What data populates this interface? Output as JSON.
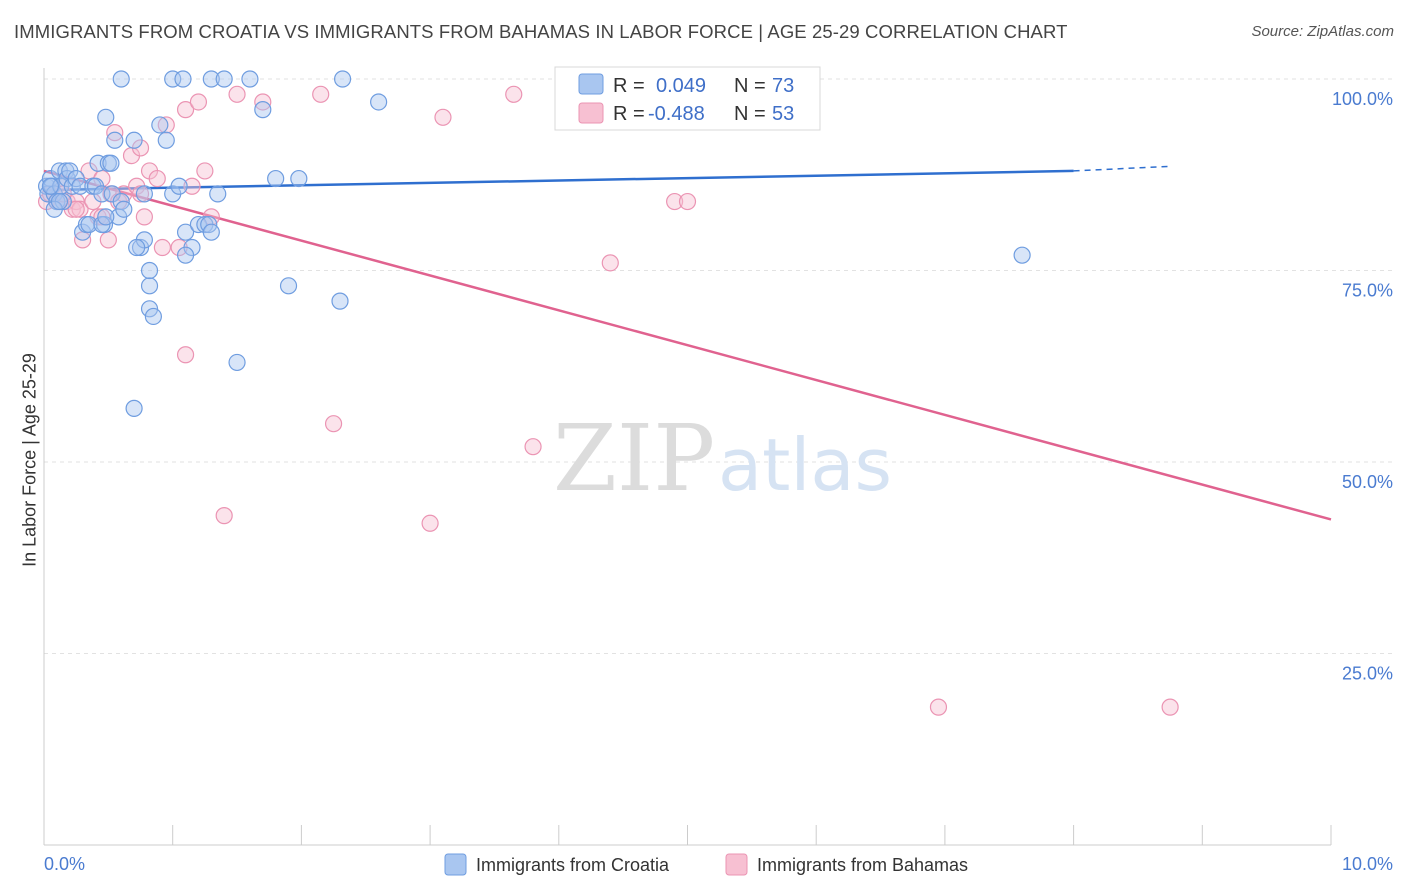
{
  "title": "IMMIGRANTS FROM CROATIA VS IMMIGRANTS FROM BAHAMAS IN LABOR FORCE | AGE 25-29 CORRELATION CHART",
  "source": "Source: ZipAtlas.com",
  "watermark": {
    "left": "ZIP",
    "right": "atlas"
  },
  "colors": {
    "croatia_fill": "#a9c6f0",
    "croatia_stroke": "#6f9de0",
    "croatia_line": "#2f6fcf",
    "bahamas_fill": "#f7c0d2",
    "bahamas_stroke": "#eb94b3",
    "bahamas_line": "#e0628f",
    "tick_text": "#4a7bd0",
    "grid": "#e2e2e2"
  },
  "legend": {
    "croatia": {
      "r_label": "R =",
      "r_value": "0.049",
      "n_label": "N =",
      "n_value": "73"
    },
    "bahamas": {
      "r_label": "R =",
      "r_value": "-0.488",
      "n_label": "N =",
      "n_value": "53"
    }
  },
  "chart_data": {
    "type": "scatter",
    "title": "IMMIGRANTS FROM CROATIA VS IMMIGRANTS FROM BAHAMAS IN LABOR FORCE | AGE 25-29 CORRELATION CHART",
    "xlabel": "",
    "ylabel": "In Labor Force | Age 25-29",
    "xlim": [
      0,
      10
    ],
    "ylim": [
      0,
      100
    ],
    "x_tick_labels": [
      "0.0%",
      "10.0%"
    ],
    "y_tick_labels": [
      "100.0%",
      "75.0%",
      "50.0%",
      "25.0%"
    ],
    "y_ticks": [
      100,
      75,
      50,
      25
    ],
    "grid": true,
    "legend_position": "top-center",
    "series": [
      {
        "name": "Immigrants from Croatia",
        "color": "#6f9de0",
        "points": [
          [
            0.02,
            86
          ],
          [
            0.03,
            85
          ],
          [
            0.05,
            87
          ],
          [
            0.06,
            86
          ],
          [
            0.08,
            85
          ],
          [
            0.1,
            84
          ],
          [
            0.12,
            88
          ],
          [
            0.13,
            86
          ],
          [
            0.15,
            84
          ],
          [
            0.17,
            88
          ],
          [
            0.18,
            87
          ],
          [
            0.2,
            88
          ],
          [
            0.22,
            86
          ],
          [
            0.25,
            87
          ],
          [
            0.28,
            86
          ],
          [
            0.3,
            80
          ],
          [
            0.33,
            81
          ],
          [
            0.35,
            81
          ],
          [
            0.38,
            86
          ],
          [
            0.4,
            86
          ],
          [
            0.42,
            89
          ],
          [
            0.45,
            85
          ],
          [
            0.47,
            81
          ],
          [
            0.48,
            95
          ],
          [
            0.5,
            89
          ],
          [
            0.52,
            89
          ],
          [
            0.53,
            85
          ],
          [
            0.55,
            92
          ],
          [
            0.58,
            82
          ],
          [
            0.6,
            84
          ],
          [
            0.62,
            83
          ],
          [
            0.05,
            86
          ],
          [
            0.08,
            83
          ],
          [
            0.12,
            84
          ],
          [
            0.45,
            81
          ],
          [
            0.7,
            92
          ],
          [
            0.75,
            78
          ],
          [
            0.78,
            79
          ],
          [
            0.82,
            70
          ],
          [
            0.85,
            69
          ],
          [
            0.9,
            94
          ],
          [
            0.95,
            92
          ],
          [
            1.0,
            85
          ],
          [
            1.05,
            86
          ],
          [
            1.1,
            80
          ],
          [
            1.15,
            78
          ],
          [
            1.2,
            81
          ],
          [
            1.25,
            81
          ],
          [
            1.28,
            81
          ],
          [
            1.3,
            80
          ],
          [
            1.35,
            85
          ],
          [
            0.6,
            100
          ],
          [
            1.0,
            100
          ],
          [
            1.08,
            100
          ],
          [
            1.3,
            100
          ],
          [
            1.4,
            100
          ],
          [
            1.6,
            100
          ],
          [
            0.78,
            85
          ],
          [
            0.72,
            78
          ],
          [
            0.48,
            82
          ],
          [
            1.7,
            96
          ],
          [
            1.8,
            87
          ],
          [
            1.98,
            87
          ],
          [
            1.1,
            77
          ],
          [
            1.9,
            73
          ],
          [
            0.82,
            73
          ],
          [
            2.32,
            100
          ],
          [
            2.6,
            97
          ],
          [
            2.3,
            71
          ],
          [
            0.7,
            57
          ],
          [
            1.5,
            63
          ],
          [
            0.82,
            75
          ],
          [
            7.6,
            77
          ]
        ]
      },
      {
        "name": "Immigrants from Bahamas",
        "color": "#eb94b3",
        "points": [
          [
            0.02,
            84
          ],
          [
            0.05,
            85
          ],
          [
            0.08,
            85
          ],
          [
            0.1,
            84
          ],
          [
            0.13,
            86
          ],
          [
            0.18,
            84
          ],
          [
            0.22,
            83
          ],
          [
            0.25,
            84
          ],
          [
            0.28,
            83
          ],
          [
            0.3,
            79
          ],
          [
            0.35,
            88
          ],
          [
            0.38,
            84
          ],
          [
            0.42,
            82
          ],
          [
            0.45,
            82
          ],
          [
            0.5,
            79
          ],
          [
            0.52,
            85
          ],
          [
            0.55,
            93
          ],
          [
            0.58,
            84
          ],
          [
            0.62,
            85
          ],
          [
            0.68,
            90
          ],
          [
            0.72,
            86
          ],
          [
            0.75,
            91
          ],
          [
            0.78,
            82
          ],
          [
            0.82,
            88
          ],
          [
            0.88,
            87
          ],
          [
            0.92,
            78
          ],
          [
            0.95,
            94
          ],
          [
            1.05,
            78
          ],
          [
            1.1,
            96
          ],
          [
            1.15,
            86
          ],
          [
            1.2,
            97
          ],
          [
            1.25,
            88
          ],
          [
            1.3,
            82
          ],
          [
            1.5,
            98
          ],
          [
            1.7,
            97
          ],
          [
            2.15,
            98
          ],
          [
            3.1,
            95
          ],
          [
            3.65,
            98
          ],
          [
            4.7,
            100
          ],
          [
            4.9,
            84
          ],
          [
            5.0,
            84
          ],
          [
            4.4,
            76
          ],
          [
            0.25,
            83
          ],
          [
            0.15,
            85
          ],
          [
            1.1,
            64
          ],
          [
            2.25,
            55
          ],
          [
            3.8,
            52
          ],
          [
            1.4,
            43
          ],
          [
            3.0,
            42
          ],
          [
            0.45,
            87
          ],
          [
            6.95,
            18
          ],
          [
            8.75,
            18
          ],
          [
            0.75,
            85
          ]
        ]
      }
    ],
    "trendlines": [
      {
        "series": "Immigrants from Croatia",
        "x": [
          0,
          8.0
        ],
        "y": [
          85.5,
          88.0
        ],
        "dashed_to": [
          8.75,
          88.6
        ]
      },
      {
        "series": "Immigrants from Bahamas",
        "x": [
          0,
          10
        ],
        "y": [
          88.0,
          42.5
        ]
      }
    ]
  },
  "bottom_legend": [
    {
      "label": "Immigrants from Croatia"
    },
    {
      "label": "Immigrants from Bahamas"
    }
  ]
}
